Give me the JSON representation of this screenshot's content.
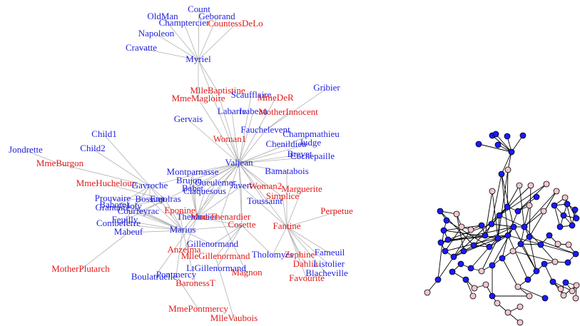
{
  "colors": {
    "blue": "#1f1fe0",
    "red": "#e01a1a",
    "edge_left": "#b0b0b0",
    "edge_right": "#000000",
    "node_blue": "#1a1aff",
    "node_pink": "#f4c6cf"
  },
  "left_graph": {
    "nodes": [
      {
        "name": "Count",
        "c": "blue"
      },
      {
        "name": "OldMan",
        "c": "blue"
      },
      {
        "name": "Geborand",
        "c": "blue"
      },
      {
        "name": "Champtercier",
        "c": "blue"
      },
      {
        "name": "CountessDeLo",
        "c": "red"
      },
      {
        "name": "Napoleon",
        "c": "blue"
      },
      {
        "name": "Cravatte",
        "c": "blue"
      },
      {
        "name": "Myriel",
        "c": "blue"
      },
      {
        "name": "MlleBaptistine",
        "c": "red"
      },
      {
        "name": "MmeMagloire",
        "c": "red"
      },
      {
        "name": "Scaufflaire",
        "c": "blue"
      },
      {
        "name": "MmeDeR",
        "c": "red"
      },
      {
        "name": "Gribier",
        "c": "blue"
      },
      {
        "name": "Labarre",
        "c": "blue"
      },
      {
        "name": "Isabeau",
        "c": "blue"
      },
      {
        "name": "MotherInnocent",
        "c": "red"
      },
      {
        "name": "Gervais",
        "c": "blue"
      },
      {
        "name": "Fauchelevent",
        "c": "blue"
      },
      {
        "name": "Champmathieu",
        "c": "blue"
      },
      {
        "name": "Chenildieu",
        "c": "blue"
      },
      {
        "name": "Judge",
        "c": "blue"
      },
      {
        "name": "Woman1",
        "c": "red"
      },
      {
        "name": "Child1",
        "c": "blue"
      },
      {
        "name": "Child2",
        "c": "blue"
      },
      {
        "name": "Brevet",
        "c": "blue"
      },
      {
        "name": "Cochepaille",
        "c": "blue"
      },
      {
        "name": "Jondrette",
        "c": "blue"
      },
      {
        "name": "MmeBurgon",
        "c": "red"
      },
      {
        "name": "Valjean",
        "c": "blue"
      },
      {
        "name": "Bamatabois",
        "c": "blue"
      },
      {
        "name": "Montparnasse",
        "c": "blue"
      },
      {
        "name": "Brujon",
        "c": "blue"
      },
      {
        "name": "Gueulemer",
        "c": "blue"
      },
      {
        "name": "MmeHucheloup",
        "c": "red"
      },
      {
        "name": "Gavroche",
        "c": "blue"
      },
      {
        "name": "Babet",
        "c": "blue"
      },
      {
        "name": "Javert",
        "c": "blue"
      },
      {
        "name": "Woman2",
        "c": "red"
      },
      {
        "name": "Marguerite",
        "c": "red"
      },
      {
        "name": "Claquesous",
        "c": "blue"
      },
      {
        "name": "Simplice",
        "c": "red"
      },
      {
        "name": "Prouvaire",
        "c": "blue"
      },
      {
        "name": "Enjolras",
        "c": "blue"
      },
      {
        "name": "Bossuet",
        "c": "blue"
      },
      {
        "name": "Bahorel",
        "c": "blue"
      },
      {
        "name": "Grantaire",
        "c": "blue"
      },
      {
        "name": "Joly",
        "c": "blue"
      },
      {
        "name": "Courfeyrac",
        "c": "blue"
      },
      {
        "name": "Toussaint",
        "c": "blue"
      },
      {
        "name": "Perpetue",
        "c": "red"
      },
      {
        "name": "Eponine",
        "c": "red"
      },
      {
        "name": "Thenardier",
        "c": "blue"
      },
      {
        "name": "MmeThenardier",
        "c": "red"
      },
      {
        "name": "Feuilly",
        "c": "blue"
      },
      {
        "name": "Combeferre",
        "c": "blue"
      },
      {
        "name": "Cosette",
        "c": "red"
      },
      {
        "name": "Fantine",
        "c": "red"
      },
      {
        "name": "Mabeuf",
        "c": "blue"
      },
      {
        "name": "Marius",
        "c": "blue"
      },
      {
        "name": "Gillenormand",
        "c": "blue"
      },
      {
        "name": "Anzelma",
        "c": "red"
      },
      {
        "name": "MlleGillenormand",
        "c": "red"
      },
      {
        "name": "Tholomyes",
        "c": "blue"
      },
      {
        "name": "Zephine",
        "c": "red"
      },
      {
        "name": "Fameuil",
        "c": "blue"
      },
      {
        "name": "Dahlia",
        "c": "red"
      },
      {
        "name": "Listolier",
        "c": "blue"
      },
      {
        "name": "MotherPlutarch",
        "c": "red"
      },
      {
        "name": "LtGillenormand",
        "c": "blue"
      },
      {
        "name": "Magnon",
        "c": "red"
      },
      {
        "name": "Blacheville",
        "c": "blue"
      },
      {
        "name": "Favourite",
        "c": "red"
      },
      {
        "name": "Boulatruelle",
        "c": "blue"
      },
      {
        "name": "Pontmercy",
        "c": "blue"
      },
      {
        "name": "BaronessT",
        "c": "red"
      },
      {
        "name": "MmePontmercy",
        "c": "red"
      },
      {
        "name": "MlleVaubois",
        "c": "red"
      }
    ],
    "edges": [
      [
        "Count",
        "Myriel"
      ],
      [
        "OldMan",
        "Myriel"
      ],
      [
        "Geborand",
        "Myriel"
      ],
      [
        "Champtercier",
        "Myriel"
      ],
      [
        "CountessDeLo",
        "Myriel"
      ],
      [
        "Napoleon",
        "Myriel"
      ],
      [
        "Cravatte",
        "Myriel"
      ],
      [
        "MlleBaptistine",
        "Myriel"
      ],
      [
        "MmeMagloire",
        "Myriel"
      ],
      [
        "Myriel",
        "Valjean"
      ],
      [
        "MlleBaptistine",
        "Valjean"
      ],
      [
        "MmeMagloire",
        "Valjean"
      ],
      [
        "Scaufflaire",
        "Valjean"
      ],
      [
        "MmeDeR",
        "Valjean"
      ],
      [
        "Labarre",
        "Valjean"
      ],
      [
        "Isabeau",
        "Valjean"
      ],
      [
        "Gervais",
        "Valjean"
      ],
      [
        "Fauchelevent",
        "Valjean"
      ],
      [
        "MotherInnocent",
        "Fauchelevent"
      ],
      [
        "Gribier",
        "Fauchelevent"
      ],
      [
        "Champmathieu",
        "Valjean"
      ],
      [
        "Chenildieu",
        "Valjean"
      ],
      [
        "Judge",
        "Valjean"
      ],
      [
        "Brevet",
        "Valjean"
      ],
      [
        "Cochepaille",
        "Valjean"
      ],
      [
        "Woman1",
        "Valjean"
      ],
      [
        "Child1",
        "Gavroche"
      ],
      [
        "Child2",
        "Gavroche"
      ],
      [
        "MmeBurgon",
        "Gavroche"
      ],
      [
        "Bamatabois",
        "Valjean"
      ],
      [
        "Bamatabois",
        "Fantine"
      ],
      [
        "Montparnasse",
        "Valjean"
      ],
      [
        "Brujon",
        "Valjean"
      ],
      [
        "Gueulemer",
        "Valjean"
      ],
      [
        "Babet",
        "Valjean"
      ],
      [
        "Claquesous",
        "Valjean"
      ],
      [
        "Javert",
        "Valjean"
      ],
      [
        "Woman2",
        "Valjean"
      ],
      [
        "Simplice",
        "Valjean"
      ],
      [
        "Toussaint",
        "Valjean"
      ],
      [
        "Marguerite",
        "Fantine"
      ],
      [
        "Simplice",
        "Fantine"
      ],
      [
        "Perpetue",
        "Fantine"
      ],
      [
        "Fantine",
        "Valjean"
      ],
      [
        "Fantine",
        "Javert"
      ],
      [
        "Thenardier",
        "Valjean"
      ],
      [
        "MmeThenardier",
        "Valjean"
      ],
      [
        "Cosette",
        "Valjean"
      ],
      [
        "Marius",
        "Valjean"
      ],
      [
        "Gavroche",
        "Valjean"
      ],
      [
        "Enjolras",
        "Valjean"
      ],
      [
        "Enjolras",
        "Marius"
      ],
      [
        "Bossuet",
        "Marius"
      ],
      [
        "Courfeyrac",
        "Marius"
      ],
      [
        "Joly",
        "Marius"
      ],
      [
        "Combeferre",
        "Marius"
      ],
      [
        "Feuilly",
        "Marius"
      ],
      [
        "Bahorel",
        "Marius"
      ],
      [
        "Grantaire",
        "Enjolras"
      ],
      [
        "Prouvaire",
        "Enjolras"
      ],
      [
        "MmeHucheloup",
        "Enjolras"
      ],
      [
        "Mabeuf",
        "Marius"
      ],
      [
        "Eponine",
        "Marius"
      ],
      [
        "Marius",
        "Cosette"
      ],
      [
        "Gillenormand",
        "Marius"
      ],
      [
        "Gillenormand",
        "Cosette"
      ],
      [
        "MlleGillenormand",
        "Cosette"
      ],
      [
        "LtGillenormand",
        "Cosette"
      ],
      [
        "Pontmercy",
        "Marius"
      ],
      [
        "BaronessT",
        "Marius"
      ],
      [
        "MmePontmercy",
        "Pontmercy"
      ],
      [
        "MlleVaubois",
        "MlleGillenormand"
      ],
      [
        "Boulatruelle",
        "Thenardier"
      ],
      [
        "Anzelma",
        "Thenardier"
      ],
      [
        "Magnon",
        "MmeThenardier"
      ],
      [
        "MotherPlutarch",
        "Mabeuf"
      ],
      [
        "Tholomyes",
        "Fantine"
      ],
      [
        "Zephine",
        "Fantine"
      ],
      [
        "Fameuil",
        "Fantine"
      ],
      [
        "Dahlia",
        "Fantine"
      ],
      [
        "Listolier",
        "Fantine"
      ],
      [
        "Blacheville",
        "Fantine"
      ],
      [
        "Favourite",
        "Fantine"
      ],
      [
        "Jondrette",
        "MmeBurgon"
      ],
      [
        "Thenardier",
        "Javert"
      ],
      [
        "Cosette",
        "Javert"
      ],
      [
        "Eponine",
        "Thenardier"
      ],
      [
        "Gavroche",
        "Enjolras"
      ],
      [
        "Thenardier",
        "MmeThenardier"
      ],
      [
        "Cosette",
        "Thenardier"
      ],
      [
        "Tholomyes",
        "Cosette"
      ],
      [
        "Marius",
        "Gavroche"
      ],
      [
        "Courfeyrac",
        "Enjolras"
      ],
      [
        "Combeferre",
        "Enjolras"
      ],
      [
        "Bossuet",
        "Gavroche"
      ],
      [
        "Joly",
        "Gavroche"
      ],
      [
        "Feuilly",
        "Gavroche"
      ],
      [
        "Prouvaire",
        "Marius"
      ],
      [
        "Grantaire",
        "Gavroche"
      ],
      [
        "Montparnasse",
        "Thenardier"
      ],
      [
        "Babet",
        "Thenardier"
      ],
      [
        "Gueulemer",
        "Thenardier"
      ],
      [
        "Claquesous",
        "Thenardier"
      ],
      [
        "Brujon",
        "Thenardier"
      ],
      [
        "Javert",
        "Woman2"
      ]
    ]
  },
  "right_graph": {
    "node_colors": [
      "blue",
      "pink"
    ]
  }
}
